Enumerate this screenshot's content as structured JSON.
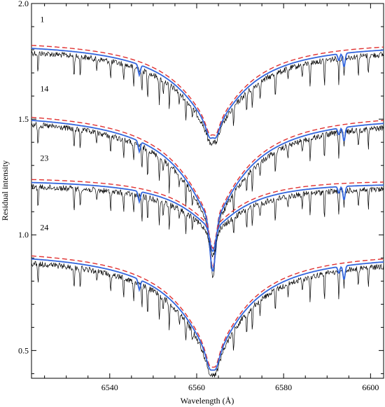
{
  "chart_data": {
    "type": "line",
    "title": "",
    "xlabel": "Wavelength (Å)",
    "ylabel": "Residual intensity",
    "xlim": [
      6522,
      6603
    ],
    "ylim": [
      0.38,
      2.0
    ],
    "x_ticks": [
      6540,
      6560,
      6580,
      6600
    ],
    "y_ticks": [
      0.5,
      1.0,
      1.5,
      2.0
    ],
    "y_tick_labels": [
      "0.5",
      "1.0",
      "1.5",
      "2.0"
    ],
    "grid": false,
    "legend": "none",
    "line_center": 6563.7,
    "colors": {
      "observed": "#000000",
      "model": "#3366dd",
      "dashed_model": "#e03030"
    },
    "series": [
      {
        "name": "1",
        "label": "1",
        "offset": 0.9,
        "shape": "double",
        "depth": 0.47,
        "continuum_left": 1.875,
        "continuum_right": 1.87,
        "label_x": 6524,
        "label_y": 1.92
      },
      {
        "name": "14",
        "label": "14",
        "offset": 0.6,
        "shape": "single",
        "depth": 0.58,
        "continuum_left": 1.575,
        "continuum_right": 1.565,
        "label_x": 6524,
        "label_y": 1.62
      },
      {
        "name": "23",
        "label": "23",
        "offset": 0.3,
        "shape": "single",
        "depth": 0.27,
        "continuum_left": 1.275,
        "continuum_right": 1.265,
        "label_x": 6524,
        "label_y": 1.32
      },
      {
        "name": "24",
        "label": "24",
        "offset": 0.0,
        "shape": "double",
        "depth": 0.57,
        "continuum_left": 0.975,
        "continuum_right": 0.965,
        "label_x": 6524,
        "label_y": 1.02
      }
    ]
  }
}
